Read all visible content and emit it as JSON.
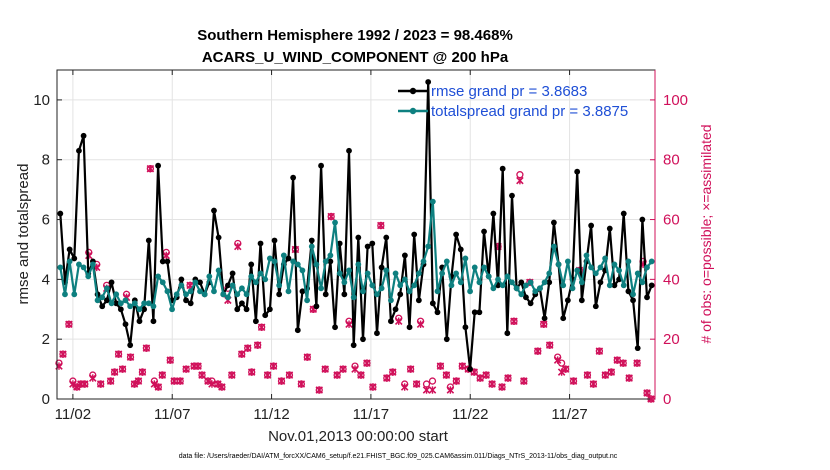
{
  "chart_data": {
    "type": "line",
    "title": "Southern Hemisphere 1992 / 2023 = 98.468%",
    "subtitle": "ACARS_U_WIND_COMPONENT @ 200 hPa",
    "xlabel": "Nov.01,2013 00:00:00 start",
    "ylabel": "rmse and totalspread",
    "y2label": "# of obs: o=possible; ×=assimilated",
    "xlim": [
      0.7,
      30.8
    ],
    "ylim": [
      0,
      11
    ],
    "y2lim": [
      0,
      110
    ],
    "x_ticks": [
      1.5,
      6.5,
      11.5,
      16.5,
      21.5,
      26.5
    ],
    "x_tick_labels": [
      "11/02",
      "11/07",
      "11/12",
      "11/17",
      "11/22",
      "11/27"
    ],
    "y_ticks": [
      0,
      2,
      4,
      6,
      8,
      10
    ],
    "y_tick_labels": [
      "0",
      "2",
      "4",
      "6",
      "8",
      "10"
    ],
    "y2_ticks": [
      0,
      20,
      40,
      60,
      80,
      100
    ],
    "y2_tick_labels": [
      "0",
      "20",
      "40",
      "60",
      "80",
      "100"
    ],
    "legend": [
      {
        "name": "rmse grand pr = 3.8683",
        "color": "#000000"
      },
      {
        "name": "totalspread grand pr = 3.8875",
        "color": "#0e8080"
      }
    ],
    "legend_position": "top-right",
    "grid": true,
    "series": [
      {
        "name": "rmse",
        "color": "#000000",
        "values": [
          6.2,
          3.9,
          5.0,
          4.7,
          8.3,
          8.8,
          4.2,
          4.6,
          3.5,
          3.1,
          3.3,
          3.9,
          3.2,
          3.0,
          2.5,
          1.8,
          3.3,
          2.6,
          3.0,
          5.3,
          2.6,
          7.8,
          4.6,
          4.6,
          3.3,
          3.4,
          4.0,
          3.3,
          3.2,
          4.0,
          3.9,
          3.5,
          3.9,
          6.3,
          5.4,
          3.5,
          3.8,
          4.2,
          3.0,
          3.2,
          3.0,
          4.5,
          2.6,
          5.2,
          2.8,
          3.0,
          5.3,
          3.5,
          4.5,
          4.7,
          7.4,
          2.3,
          3.6,
          3.7,
          5.3,
          3.1,
          7.8,
          3.5,
          4.6,
          2.4,
          5.2,
          3.5,
          8.3,
          1.8,
          5.4,
          2.0,
          5.1,
          5.2,
          2.2,
          4.4,
          5.4,
          2.6,
          3.0,
          3.5,
          4.8,
          2.4,
          5.5,
          3.3,
          4.5,
          10.6,
          3.2,
          2.9,
          4.4,
          2.0,
          4.1,
          5.5,
          5.0,
          2.4,
          1.0,
          2.9,
          2.9,
          5.6,
          4.1,
          6.2,
          3.8,
          7.7,
          2.2,
          6.8,
          3.7,
          3.9,
          3.4,
          3.2,
          3.5,
          3.7,
          2.7,
          3.9,
          5.9,
          4.5,
          2.7,
          3.3,
          4.0,
          7.6,
          3.3,
          4.6,
          5.8,
          3.1,
          3.9,
          4.3,
          5.7,
          3.8,
          4.0,
          6.2,
          3.6,
          3.3,
          1.7,
          6.0,
          3.4,
          3.8
        ]
      },
      {
        "name": "totalspread",
        "color": "#0e8080",
        "values": [
          4.4,
          3.5,
          4.6,
          3.5,
          4.5,
          4.4,
          4.1,
          4.5,
          3.3,
          3.4,
          3.7,
          3.2,
          3.5,
          3.2,
          3.3,
          3.1,
          3.2,
          3.0,
          3.2,
          3.2,
          3.1,
          4.1,
          3.9,
          3.6,
          3.0,
          3.5,
          3.8,
          3.5,
          3.6,
          3.9,
          3.6,
          3.5,
          4.1,
          3.6,
          4.3,
          3.5,
          3.4,
          3.8,
          3.5,
          3.7,
          3.5,
          4.1,
          3.9,
          4.2,
          4.0,
          4.7,
          4.6,
          3.8,
          4.8,
          3.6,
          4.6,
          4.5,
          4.3,
          3.3,
          5.1,
          4.5,
          3.7,
          4.6,
          4.8,
          5.9,
          4.2,
          3.9,
          4.3,
          3.4,
          4.5,
          3.6,
          4.2,
          3.8,
          3.5,
          3.7,
          4.3,
          3.3,
          4.2,
          3.8,
          4.0,
          3.6,
          3.8,
          4.2,
          4.6,
          5.1,
          6.6,
          3.6,
          4.2,
          4.6,
          3.8,
          4.2,
          3.9,
          4.7,
          3.6,
          4.4,
          3.9,
          4.4,
          4.1,
          3.7,
          4.0,
          3.8,
          4.1,
          3.9,
          3.7,
          3.5,
          3.8,
          3.9,
          3.6,
          3.7,
          3.9,
          4.2,
          5.1,
          4.5,
          3.8,
          4.6,
          3.7,
          4.3,
          3.9,
          4.8,
          4.4,
          4.2,
          4.4,
          4.7,
          3.8,
          4.5,
          4.3,
          3.8,
          4.6,
          3.5,
          4.2,
          3.9,
          4.4,
          4.6
        ]
      }
    ],
    "nobs_possible": [
      [
        0.8,
        12
      ],
      [
        1.0,
        15
      ],
      [
        1.3,
        25
      ],
      [
        1.5,
        6
      ],
      [
        1.7,
        4
      ],
      [
        1.9,
        5
      ],
      [
        2.1,
        5
      ],
      [
        2.3,
        49
      ],
      [
        2.5,
        8
      ],
      [
        2.7,
        45
      ],
      [
        2.9,
        5
      ],
      [
        3.2,
        38
      ],
      [
        3.4,
        6
      ],
      [
        3.6,
        9
      ],
      [
        3.8,
        15
      ],
      [
        4.0,
        10
      ],
      [
        4.2,
        35
      ],
      [
        4.4,
        14
      ],
      [
        4.6,
        5
      ],
      [
        4.8,
        6
      ],
      [
        5.0,
        9
      ],
      [
        5.2,
        17
      ],
      [
        5.4,
        77
      ],
      [
        5.6,
        6
      ],
      [
        5.8,
        4
      ],
      [
        6.0,
        8
      ],
      [
        6.2,
        49
      ],
      [
        6.4,
        13
      ],
      [
        6.6,
        6
      ],
      [
        6.9,
        6
      ],
      [
        7.2,
        10
      ],
      [
        7.4,
        38
      ],
      [
        7.6,
        11
      ],
      [
        7.8,
        11
      ],
      [
        8.0,
        8
      ],
      [
        8.3,
        6
      ],
      [
        8.5,
        6
      ],
      [
        8.8,
        5
      ],
      [
        9.0,
        4
      ],
      [
        9.3,
        37
      ],
      [
        9.5,
        8
      ],
      [
        9.8,
        52
      ],
      [
        10.0,
        15
      ],
      [
        10.3,
        17
      ],
      [
        10.5,
        9
      ],
      [
        10.8,
        18
      ],
      [
        11.0,
        24
      ],
      [
        11.3,
        8
      ],
      [
        11.6,
        11
      ],
      [
        12.0,
        6
      ],
      [
        12.4,
        8
      ],
      [
        12.7,
        50
      ],
      [
        13.0,
        5
      ],
      [
        13.3,
        14
      ],
      [
        13.6,
        30
      ],
      [
        13.9,
        3
      ],
      [
        14.2,
        10
      ],
      [
        14.5,
        61
      ],
      [
        14.8,
        8
      ],
      [
        15.1,
        10
      ],
      [
        15.4,
        26
      ],
      [
        15.7,
        11
      ],
      [
        16.0,
        8
      ],
      [
        16.3,
        12
      ],
      [
        16.6,
        4
      ],
      [
        17.0,
        58
      ],
      [
        17.3,
        7
      ],
      [
        17.6,
        9
      ],
      [
        17.9,
        27
      ],
      [
        18.2,
        5
      ],
      [
        18.5,
        10
      ],
      [
        18.8,
        5
      ],
      [
        19.0,
        26
      ],
      [
        19.3,
        5
      ],
      [
        19.6,
        6
      ],
      [
        20.0,
        11
      ],
      [
        20.3,
        8
      ],
      [
        20.5,
        4
      ],
      [
        20.8,
        6
      ],
      [
        21.1,
        11
      ],
      [
        21.4,
        10
      ],
      [
        21.7,
        9
      ],
      [
        22.0,
        7
      ],
      [
        22.3,
        8
      ],
      [
        22.6,
        5
      ],
      [
        22.9,
        51
      ],
      [
        23.1,
        4
      ],
      [
        23.4,
        7
      ],
      [
        23.7,
        26
      ],
      [
        24.0,
        75
      ],
      [
        24.2,
        6
      ],
      [
        24.5,
        39
      ],
      [
        24.9,
        16
      ],
      [
        25.2,
        25
      ],
      [
        25.5,
        18
      ],
      [
        25.9,
        14
      ],
      [
        26.1,
        12
      ],
      [
        26.3,
        10
      ],
      [
        26.7,
        6
      ],
      [
        27.0,
        43
      ],
      [
        27.4,
        8
      ],
      [
        27.7,
        5
      ],
      [
        28.0,
        16
      ],
      [
        28.3,
        8
      ],
      [
        28.6,
        9
      ],
      [
        28.9,
        13
      ],
      [
        29.2,
        12
      ],
      [
        29.5,
        7
      ],
      [
        29.9,
        12
      ],
      [
        30.2,
        46
      ],
      [
        30.4,
        2
      ],
      [
        30.6,
        0
      ]
    ],
    "nobs_assimilated": [
      [
        0.8,
        11
      ],
      [
        1.0,
        15
      ],
      [
        1.3,
        25
      ],
      [
        1.5,
        5
      ],
      [
        1.7,
        4
      ],
      [
        1.9,
        5
      ],
      [
        2.1,
        5
      ],
      [
        2.3,
        48
      ],
      [
        2.5,
        7
      ],
      [
        2.7,
        44
      ],
      [
        2.9,
        5
      ],
      [
        3.2,
        37
      ],
      [
        3.4,
        6
      ],
      [
        3.6,
        9
      ],
      [
        3.8,
        15
      ],
      [
        4.0,
        10
      ],
      [
        4.2,
        34
      ],
      [
        4.4,
        14
      ],
      [
        4.6,
        5
      ],
      [
        4.8,
        6
      ],
      [
        5.0,
        9
      ],
      [
        5.2,
        17
      ],
      [
        5.4,
        77
      ],
      [
        5.6,
        5
      ],
      [
        5.8,
        4
      ],
      [
        6.0,
        8
      ],
      [
        6.2,
        48
      ],
      [
        6.4,
        13
      ],
      [
        6.6,
        6
      ],
      [
        6.9,
        6
      ],
      [
        7.2,
        10
      ],
      [
        7.4,
        38
      ],
      [
        7.6,
        11
      ],
      [
        7.8,
        11
      ],
      [
        8.0,
        8
      ],
      [
        8.3,
        6
      ],
      [
        8.5,
        5
      ],
      [
        8.8,
        5
      ],
      [
        9.0,
        4
      ],
      [
        9.3,
        33
      ],
      [
        9.5,
        8
      ],
      [
        9.8,
        51
      ],
      [
        10.0,
        15
      ],
      [
        10.3,
        17
      ],
      [
        10.5,
        9
      ],
      [
        10.8,
        18
      ],
      [
        11.0,
        24
      ],
      [
        11.3,
        8
      ],
      [
        11.6,
        11
      ],
      [
        12.0,
        6
      ],
      [
        12.4,
        8
      ],
      [
        12.7,
        50
      ],
      [
        13.0,
        5
      ],
      [
        13.3,
        14
      ],
      [
        13.6,
        30
      ],
      [
        13.9,
        3
      ],
      [
        14.2,
        10
      ],
      [
        14.5,
        61
      ],
      [
        14.8,
        8
      ],
      [
        15.1,
        10
      ],
      [
        15.4,
        25
      ],
      [
        15.7,
        10
      ],
      [
        16.0,
        8
      ],
      [
        16.3,
        12
      ],
      [
        16.6,
        4
      ],
      [
        17.0,
        58
      ],
      [
        17.3,
        7
      ],
      [
        17.6,
        9
      ],
      [
        17.9,
        26
      ],
      [
        18.2,
        4
      ],
      [
        18.5,
        10
      ],
      [
        18.8,
        5
      ],
      [
        19.0,
        25
      ],
      [
        19.3,
        3
      ],
      [
        19.6,
        3
      ],
      [
        20.0,
        11
      ],
      [
        20.3,
        8
      ],
      [
        20.5,
        3
      ],
      [
        20.8,
        6
      ],
      [
        21.1,
        11
      ],
      [
        21.4,
        10
      ],
      [
        21.7,
        9
      ],
      [
        22.0,
        7
      ],
      [
        22.3,
        8
      ],
      [
        22.6,
        5
      ],
      [
        22.9,
        51
      ],
      [
        23.1,
        4
      ],
      [
        23.4,
        7
      ],
      [
        23.7,
        26
      ],
      [
        24.0,
        73
      ],
      [
        24.2,
        6
      ],
      [
        24.5,
        39
      ],
      [
        24.9,
        16
      ],
      [
        25.2,
        25
      ],
      [
        25.5,
        18
      ],
      [
        25.9,
        13
      ],
      [
        26.1,
        9
      ],
      [
        26.3,
        10
      ],
      [
        26.7,
        6
      ],
      [
        27.0,
        43
      ],
      [
        27.4,
        8
      ],
      [
        27.7,
        5
      ],
      [
        28.0,
        16
      ],
      [
        28.3,
        8
      ],
      [
        28.6,
        9
      ],
      [
        28.9,
        13
      ],
      [
        29.2,
        12
      ],
      [
        29.5,
        7
      ],
      [
        29.9,
        12
      ],
      [
        30.2,
        45
      ],
      [
        30.4,
        2
      ],
      [
        30.6,
        0
      ]
    ]
  },
  "footer": "data file: /Users/raeder/DAI/ATM_forcXX/CAM6_setup/f.e21.FHIST_BGC.f09_025.CAM6assim.011/Diags_NTrS_2013-11/obs_diag_output.nc",
  "colors": {
    "rmse": "#000000",
    "totalspread": "#0e8080",
    "nobs": "#d0105a",
    "grid": "#e3e3e3",
    "legend_text": "#1f4fd6"
  }
}
